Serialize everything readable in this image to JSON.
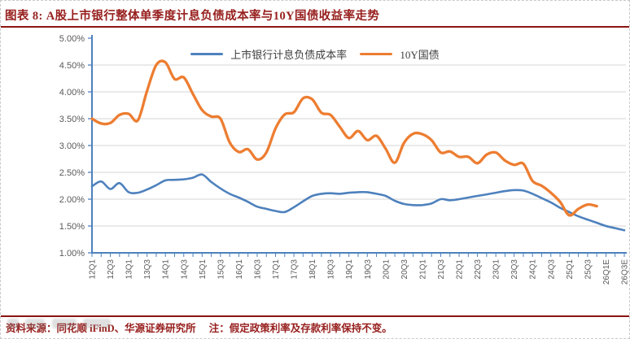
{
  "figure": {
    "title": "图表 8: A股上市银行整体单季度计息负债成本率与10Y国债收益率走势",
    "source": "资料来源：同花顺 iFinD、华源证券研究所",
    "note": "注：假定政策利率及存款利率保持不变。"
  },
  "colors": {
    "title_red": "#97201e",
    "rule_red": "#8a1412",
    "series_blue": "#4E81BD",
    "series_orange": "#ED7D31",
    "axis_blue": "#4E81BD",
    "gridline_gray": "#D6D6D6",
    "tick_text_gray": "#595959"
  },
  "chart_data": {
    "type": "line",
    "n_points": 59,
    "label_every": 2,
    "x_tick_labels": [
      "12Q1",
      "12Q3",
      "13Q1",
      "13Q3",
      "14Q1",
      "14Q3",
      "15Q1",
      "15Q3",
      "16Q1",
      "16Q3",
      "17Q1",
      "17Q3",
      "18Q1",
      "18Q3",
      "19Q1",
      "19Q3",
      "20Q1",
      "20Q3",
      "21Q1",
      "21Q3",
      "22Q1",
      "22Q3",
      "23Q1",
      "23Q3",
      "24Q1",
      "24Q3",
      "25Q1",
      "25Q3",
      "26Q1E",
      "26Q3E"
    ],
    "y_tick_labels": [
      "5.00%",
      "4.50%",
      "4.00%",
      "3.50%",
      "3.00%",
      "2.50%",
      "2.00%",
      "1.50%",
      "1.00%"
    ],
    "ylim": [
      1.0,
      5.0
    ],
    "y_step": 0.5,
    "grid": "horizontal",
    "legend_position": "top-center",
    "series": [
      {
        "name": "上市银行计息负债成本率",
        "color": "#4E81BD",
        "values": [
          2.24,
          2.33,
          2.19,
          2.3,
          2.13,
          2.12,
          2.18,
          2.26,
          2.35,
          2.36,
          2.37,
          2.4,
          2.46,
          2.32,
          2.2,
          2.1,
          2.03,
          1.95,
          1.86,
          1.82,
          1.78,
          1.76,
          1.85,
          1.96,
          2.06,
          2.1,
          2.11,
          2.1,
          2.12,
          2.13,
          2.13,
          2.1,
          2.06,
          1.97,
          1.91,
          1.89,
          1.89,
          1.92,
          2.0,
          1.98,
          2.0,
          2.03,
          2.06,
          2.09,
          2.12,
          2.15,
          2.17,
          2.16,
          2.1,
          2.02,
          1.94,
          1.84,
          1.76,
          1.68,
          1.62,
          1.56,
          1.5,
          1.46,
          1.42
        ]
      },
      {
        "name": "10Y国债",
        "color": "#ED7D31",
        "values": [
          3.5,
          3.41,
          3.42,
          3.57,
          3.59,
          3.47,
          4.02,
          4.5,
          4.55,
          4.24,
          4.27,
          3.96,
          3.66,
          3.54,
          3.5,
          3.06,
          2.88,
          2.93,
          2.74,
          2.87,
          3.32,
          3.58,
          3.62,
          3.88,
          3.86,
          3.61,
          3.57,
          3.35,
          3.14,
          3.27,
          3.1,
          3.18,
          2.94,
          2.68,
          3.05,
          3.22,
          3.21,
          3.1,
          2.87,
          2.89,
          2.79,
          2.79,
          2.67,
          2.83,
          2.87,
          2.72,
          2.64,
          2.66,
          2.34,
          2.25,
          2.12,
          1.95,
          1.7,
          1.82,
          1.9,
          1.87,
          null,
          null,
          null
        ]
      }
    ]
  }
}
